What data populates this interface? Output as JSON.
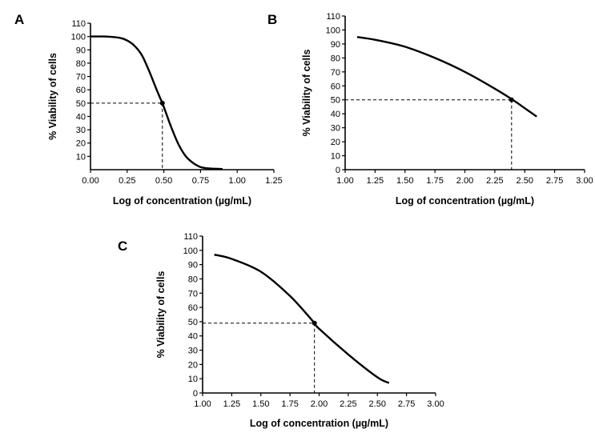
{
  "chart_data": [
    {
      "type": "line",
      "panel_label": "A",
      "xlabel": "Log of concentration (µg/mL)",
      "ylabel": "% Viability of cells",
      "xlim": [
        0,
        1.25
      ],
      "ylim": [
        0,
        110
      ],
      "xticks": [
        0,
        0.25,
        0.5,
        0.75,
        1.0,
        1.25
      ],
      "xtick_labels": [
        "0.00",
        "0.25",
        "0.50",
        "0.75",
        "1.00",
        "1.25"
      ],
      "yticks": [
        10,
        20,
        30,
        40,
        50,
        60,
        70,
        80,
        90,
        100,
        110
      ],
      "ytick_labels": [
        "10",
        "20",
        "30",
        "40",
        "50",
        "60",
        "70",
        "80",
        "90",
        "100",
        "110"
      ],
      "grid": false,
      "series": [
        {
          "x": [
            0.0,
            0.1,
            0.2,
            0.25,
            0.3,
            0.35,
            0.4,
            0.44,
            0.47,
            0.49,
            0.52,
            0.55,
            0.6,
            0.65,
            0.7,
            0.75,
            0.8,
            0.9
          ],
          "y": [
            100,
            100,
            99,
            97,
            93,
            86,
            74,
            63,
            55,
            50,
            41,
            32,
            19,
            10,
            5,
            2,
            1,
            0.5
          ]
        }
      ],
      "ic50_point": {
        "x": 0.49,
        "y": 50
      }
    },
    {
      "type": "line",
      "panel_label": "B",
      "xlabel": "Log of concentration (µg/mL)",
      "ylabel": "% Viability of cells",
      "xlim": [
        1.0,
        3.0
      ],
      "ylim": [
        0,
        110
      ],
      "xticks": [
        1.0,
        1.25,
        1.5,
        1.75,
        2.0,
        2.25,
        2.5,
        2.75,
        3.0
      ],
      "xtick_labels": [
        "1.00",
        "1.25",
        "1.50",
        "1.75",
        "2.00",
        "2.25",
        "2.50",
        "2.75",
        "3.00"
      ],
      "yticks": [
        0,
        10,
        20,
        30,
        40,
        50,
        60,
        70,
        80,
        90,
        100,
        110
      ],
      "ytick_labels": [
        "0",
        "10",
        "20",
        "30",
        "40",
        "50",
        "60",
        "70",
        "80",
        "90",
        "100",
        "110"
      ],
      "grid": false,
      "series": [
        {
          "x": [
            1.1,
            1.25,
            1.5,
            1.75,
            2.0,
            2.25,
            2.4,
            2.5,
            2.6
          ],
          "y": [
            95,
            93,
            88,
            80,
            70,
            58,
            50,
            44,
            38
          ]
        }
      ],
      "ic50_point": {
        "x": 2.39,
        "y": 50
      }
    },
    {
      "type": "line",
      "panel_label": "C",
      "xlabel": "Log of concentration (µg/mL)",
      "ylabel": "% Viability of cells",
      "xlim": [
        1.0,
        3.0
      ],
      "ylim": [
        0,
        110
      ],
      "xticks": [
        1.0,
        1.25,
        1.5,
        1.75,
        2.0,
        2.25,
        2.5,
        2.75,
        3.0
      ],
      "xtick_labels": [
        "1.00",
        "1.25",
        "1.50",
        "1.75",
        "2.00",
        "2.25",
        "2.50",
        "2.75",
        "3.00"
      ],
      "yticks": [
        0,
        10,
        20,
        30,
        40,
        50,
        60,
        70,
        80,
        90,
        100,
        110
      ],
      "ytick_labels": [
        "0",
        "10",
        "20",
        "30",
        "40",
        "50",
        "60",
        "70",
        "80",
        "90",
        "100",
        "110"
      ],
      "grid": false,
      "series": [
        {
          "x": [
            1.1,
            1.25,
            1.5,
            1.75,
            1.95,
            2.0,
            2.25,
            2.5,
            2.6
          ],
          "y": [
            97,
            94,
            85,
            68,
            50,
            45,
            27,
            11,
            7
          ]
        }
      ],
      "ic50_point": {
        "x": 1.96,
        "y": 49
      }
    }
  ]
}
